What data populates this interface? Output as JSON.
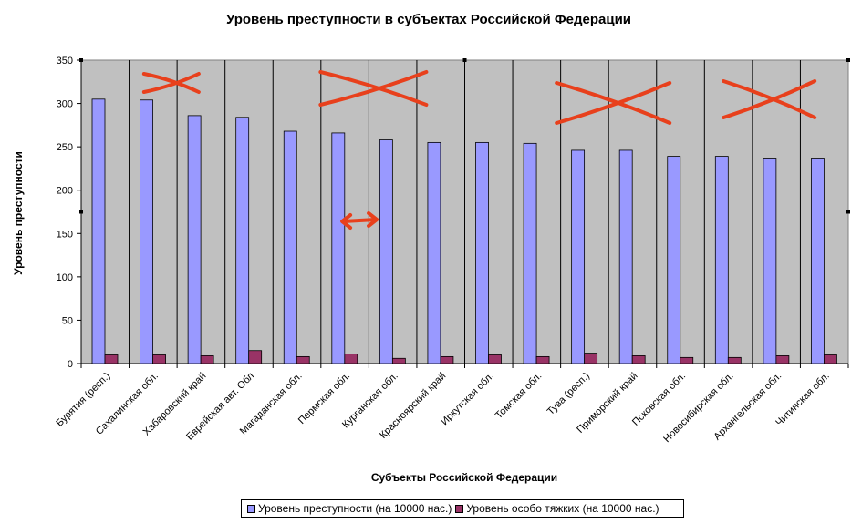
{
  "chart_data": {
    "type": "bar",
    "title": "Уровень преступности в субъектах Российской Федерации",
    "xlabel": "Субъекты Российской Федерации",
    "ylabel": "Уровень преступности",
    "ylim": [
      0,
      350
    ],
    "yticks": [
      0,
      50,
      100,
      150,
      200,
      250,
      300,
      350
    ],
    "ytick_labels": [
      "0",
      "50",
      "100",
      "150",
      "200",
      "250",
      "300",
      "350"
    ],
    "grid": true,
    "legend_position": "bottom",
    "categories": [
      "Бурятия (респ.)",
      "Сахалинская обл.",
      "Хабаровский край",
      "Еврейская авт. Обл",
      "Магаданская обл.",
      "Пермская обл.",
      "Курганская обл.",
      "Красноярский край",
      "Иркутская обл.",
      "Томская обл.",
      "Тува (респ.)",
      "Приморский край",
      "Псковская обл.",
      "Новосибирская обл.",
      "Архангельская обл.",
      "Читинская обл."
    ],
    "series": [
      {
        "name": "Уровень преступности (на 10000 нас.)",
        "color": "#9999ff",
        "values": [
          305,
          304,
          286,
          284,
          268,
          266,
          258,
          255,
          255,
          254,
          246,
          246,
          239,
          239,
          237,
          237
        ]
      },
      {
        "name": "Уровень особо тяжких (на 10000 нас.)",
        "color": "#993366",
        "values": [
          10,
          10,
          9,
          15,
          8,
          11,
          6,
          8,
          10,
          8,
          12,
          9,
          7,
          7,
          9,
          10
        ]
      }
    ],
    "colors": {
      "plot_background": "#c0c0c0",
      "annotation": "#e8401c"
    },
    "annotations": [
      {
        "type": "cross",
        "category_index": 1
      },
      {
        "type": "cross",
        "category_index": 5
      },
      {
        "type": "cross",
        "category_index": 6
      },
      {
        "type": "double-arrow",
        "category_index": 5
      },
      {
        "type": "cross",
        "category_index": 10
      },
      {
        "type": "cross",
        "category_index": 11
      },
      {
        "type": "cross",
        "category_index": 14
      }
    ]
  }
}
